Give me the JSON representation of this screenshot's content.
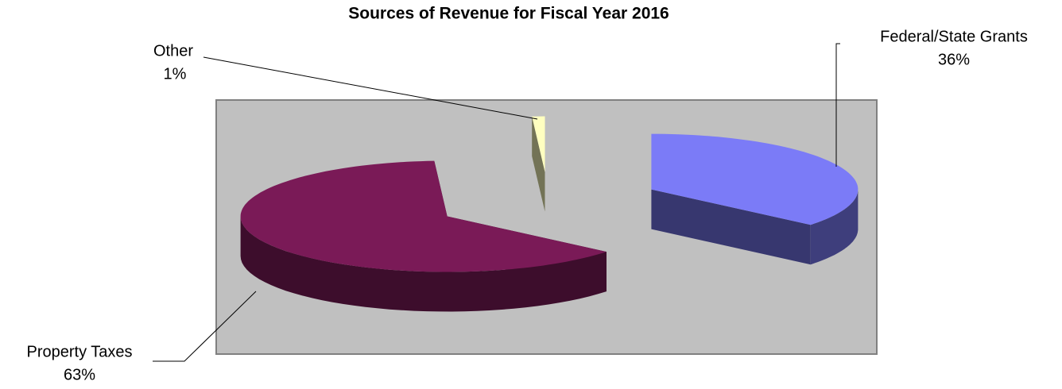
{
  "chart_data": {
    "type": "pie3d",
    "title": "Sources of Revenue for Fiscal Year 2016",
    "categories": [
      "Federal/State Grants",
      "Property Taxes",
      "Other"
    ],
    "values": [
      36,
      63,
      1
    ],
    "value_labels": [
      "36%",
      "63%",
      "1%"
    ],
    "colors": [
      "#7b7bf7",
      "#7a1a57",
      "#ffffc0"
    ],
    "plot_background": "#c0c0c0"
  }
}
